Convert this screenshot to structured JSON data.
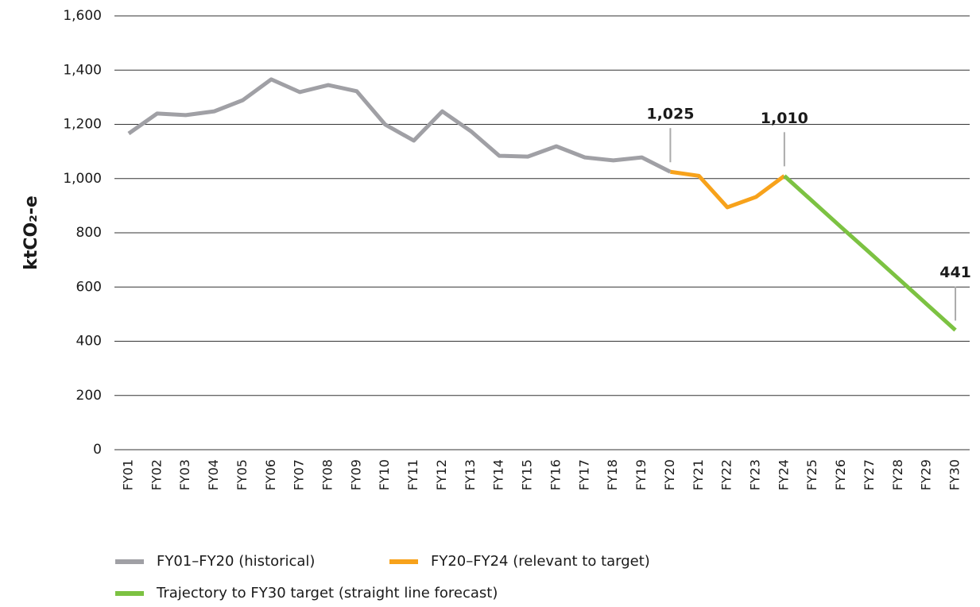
{
  "chart_data": {
    "type": "line",
    "y_label": "ktCO₂-e",
    "categories": [
      "FY01",
      "FY02",
      "FY03",
      "FY04",
      "FY05",
      "FY06",
      "FY07",
      "FY08",
      "FY09",
      "FY10",
      "FY11",
      "FY12",
      "FY13",
      "FY14",
      "FY15",
      "FY16",
      "FY17",
      "FY18",
      "FY19",
      "FY20",
      "FY21",
      "FY22",
      "FY23",
      "FY24",
      "FY25",
      "FY26",
      "FY27",
      "FY28",
      "FY29",
      "FY30"
    ],
    "series": [
      {
        "name": "FY01–FY20 (historical)",
        "color": "#a0a0a5",
        "values": [
          1166,
          1240,
          1234,
          1248,
          1289,
          1366,
          1319,
          1345,
          1322,
          1199,
          1140,
          1248,
          1175,
          1084,
          1081,
          1119,
          1078,
          1067,
          1078,
          1025,
          null,
          null,
          null,
          null,
          null,
          null,
          null,
          null,
          null,
          null
        ]
      },
      {
        "name": "FY20–FY24 (relevant to target)",
        "color": "#f7a21b",
        "values": [
          null,
          null,
          null,
          null,
          null,
          null,
          null,
          null,
          null,
          null,
          null,
          null,
          null,
          null,
          null,
          null,
          null,
          null,
          null,
          1025,
          1010,
          894,
          932,
          1010,
          null,
          null,
          null,
          null,
          null,
          null
        ],
        "value_labels": [
          null,
          null,
          null,
          null,
          null,
          null,
          null,
          null,
          null,
          null,
          null,
          null,
          null,
          null,
          null,
          null,
          null,
          null,
          null,
          "1,025",
          null,
          null,
          null,
          "1,010",
          null,
          null,
          null,
          null,
          null,
          null
        ]
      },
      {
        "name": "Trajectory to FY30 target (straight line forecast)",
        "color": "#7cc242",
        "values": [
          null,
          null,
          null,
          null,
          null,
          null,
          null,
          null,
          null,
          null,
          null,
          null,
          null,
          null,
          null,
          null,
          null,
          null,
          null,
          null,
          null,
          null,
          null,
          1010,
          915,
          820,
          726,
          631,
          536,
          441
        ],
        "value_labels": [
          null,
          null,
          null,
          null,
          null,
          null,
          null,
          null,
          null,
          null,
          null,
          null,
          null,
          null,
          null,
          null,
          null,
          null,
          null,
          null,
          null,
          null,
          null,
          null,
          null,
          null,
          null,
          null,
          null,
          "441"
        ]
      }
    ],
    "ylim": [
      0,
      1600
    ],
    "yticks": [
      0,
      200,
      400,
      600,
      800,
      {
        "value": 1000,
        "label": "1,000"
      },
      {
        "value": 1200,
        "label": "1,200"
      },
      {
        "value": 1400,
        "label": "1,400"
      },
      {
        "value": 1600,
        "label": "1,600"
      }
    ],
    "grid": true,
    "legend": "bottom"
  }
}
